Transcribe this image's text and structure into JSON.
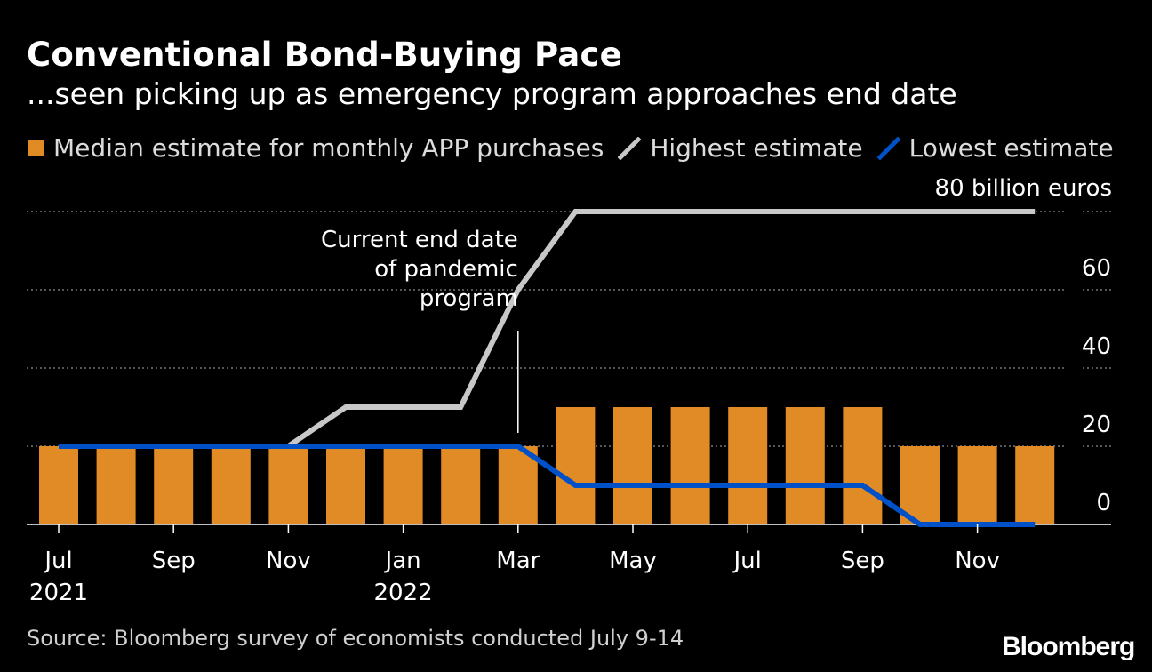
{
  "title": "Conventional Bond-Buying Pace",
  "subtitle": "...seen picking up as emergency program approaches end date",
  "legend": {
    "median": "Median estimate for monthly APP purchases",
    "highest": "Highest estimate",
    "lowest": "Lowest estimate"
  },
  "source": "Source: Bloomberg survey of economists conducted July 9-14",
  "logo": "Bloomberg",
  "colors": {
    "bar": "#e08b26",
    "highest": "#c8c8c8",
    "lowest": "#0050c8",
    "grid": "#8c8c8c"
  },
  "chart_data": {
    "type": "bar",
    "categories": [
      "2021-07",
      "2021-08",
      "2021-09",
      "2021-10",
      "2021-11",
      "2021-12",
      "2022-01",
      "2022-02",
      "2022-03",
      "2022-04",
      "2022-05",
      "2022-06",
      "2022-07",
      "2022-08",
      "2022-09",
      "2022-10",
      "2022-11",
      "2022-12"
    ],
    "series": [
      {
        "name": "Median estimate for monthly APP purchases",
        "type": "bar",
        "values": [
          20,
          20,
          20,
          20,
          20,
          20,
          20,
          20,
          20,
          30,
          30,
          30,
          30,
          30,
          30,
          20,
          20,
          20
        ]
      },
      {
        "name": "Highest estimate",
        "type": "line",
        "values": [
          20,
          20,
          20,
          20,
          20,
          30,
          30,
          30,
          60,
          80,
          80,
          80,
          80,
          80,
          80,
          80,
          80,
          80
        ]
      },
      {
        "name": "Lowest estimate",
        "type": "line",
        "values": [
          20,
          20,
          20,
          20,
          20,
          20,
          20,
          20,
          20,
          10,
          10,
          10,
          10,
          10,
          10,
          0,
          0,
          0
        ]
      }
    ],
    "ylim": [
      0,
      80
    ],
    "yticks": [
      0,
      20,
      40,
      60
    ],
    "ytick_labels": [
      "0",
      "20",
      "40",
      "60"
    ],
    "ytop_label": "80 billion euros",
    "xticks": [
      {
        "index": 0,
        "label": "Jul",
        "sublabel": "2021"
      },
      {
        "index": 2,
        "label": "Sep",
        "sublabel": ""
      },
      {
        "index": 4,
        "label": "Nov",
        "sublabel": ""
      },
      {
        "index": 6,
        "label": "Jan",
        "sublabel": "2022"
      },
      {
        "index": 8,
        "label": "Mar",
        "sublabel": ""
      },
      {
        "index": 10,
        "label": "May",
        "sublabel": ""
      },
      {
        "index": 12,
        "label": "Jul",
        "sublabel": ""
      },
      {
        "index": 14,
        "label": "Sep",
        "sublabel": ""
      },
      {
        "index": 16,
        "label": "Nov",
        "sublabel": ""
      }
    ],
    "annotation": {
      "index": 8,
      "lines": [
        "Current end date",
        "of pandemic",
        "program"
      ]
    },
    "grid": true,
    "legend_position": "top"
  }
}
